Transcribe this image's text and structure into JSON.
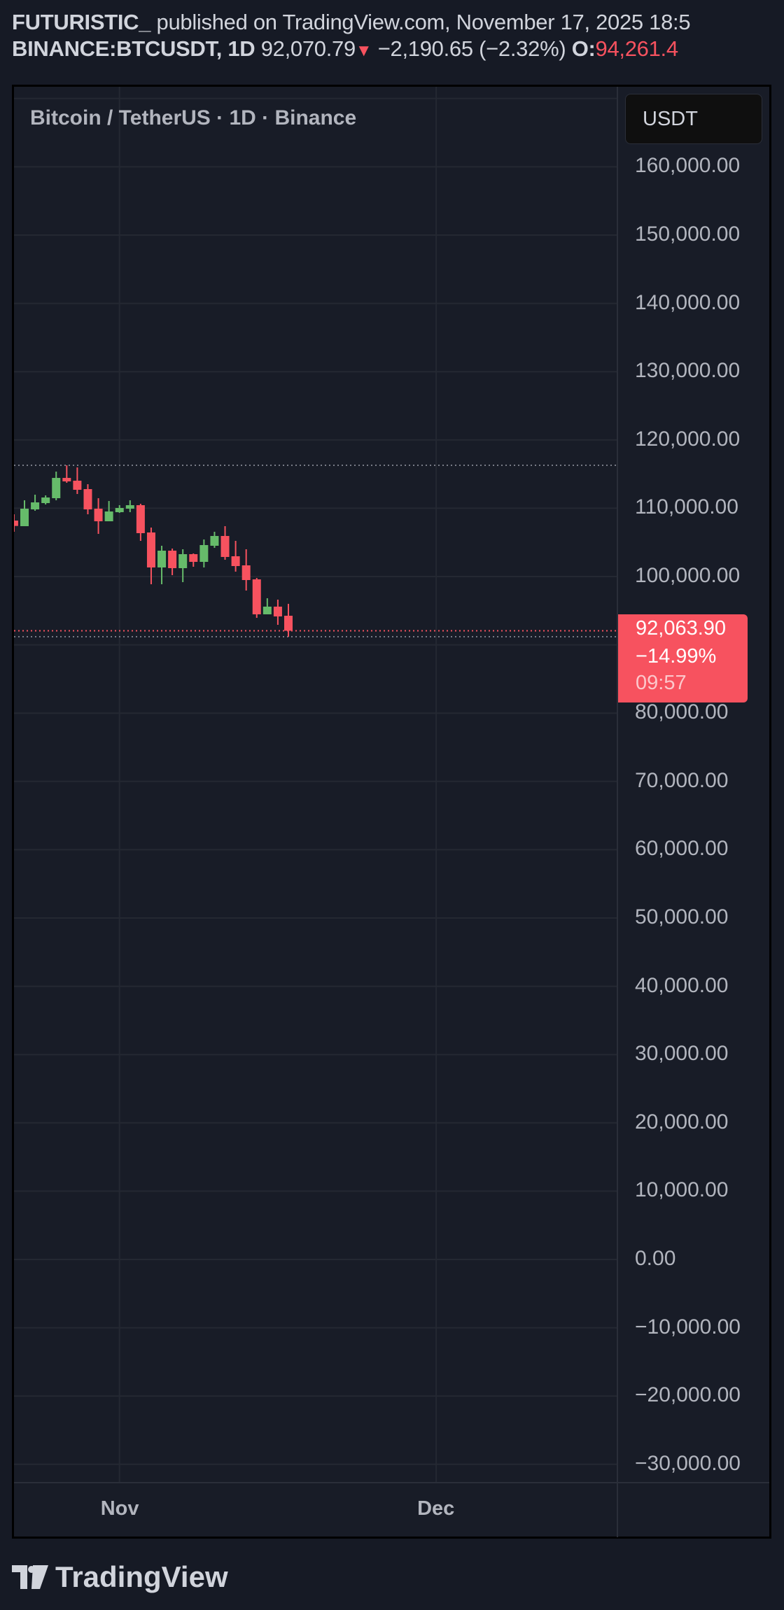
{
  "header": {
    "author": "FUTURISTIC_",
    "published": " published on TradingView.com, November 17, 2025 18:5",
    "symbol": "BINANCE:BTCUSDT, 1D",
    "last": "92,070.79",
    "change": "−2,190.65 (−2.32%)",
    "open_label": "O:",
    "open_value": "94,261.4"
  },
  "legend": "Bitcoin / TetherUS · 1D · Binance",
  "currency_button": "USDT",
  "last_price_label": {
    "price": "92,063.90",
    "change_pct": "−14.99%",
    "countdown": "09:57"
  },
  "logo": "TradingView",
  "colors": {
    "up": "#66bb6a",
    "down": "#f7525f",
    "background": "#181c27",
    "grid": "#242832"
  },
  "chart_data": {
    "type": "candlestick",
    "symbol": "BTCUSDT",
    "interval": "1D",
    "ylim": [
      -30000,
      160000
    ],
    "y_ticks": [
      "160,000.00",
      "150,000.00",
      "140,000.00",
      "130,000.00",
      "120,000.00",
      "110,000.00",
      "100,000.00",
      "80,000.00",
      "70,000.00",
      "60,000.00",
      "50,000.00",
      "40,000.00",
      "30,000.00",
      "20,000.00",
      "10,000.00",
      "0.00",
      "−10,000.00",
      "−20,000.00",
      "−30,000.00"
    ],
    "y_tick_values": [
      160000,
      150000,
      140000,
      130000,
      120000,
      110000,
      100000,
      80000,
      70000,
      60000,
      50000,
      40000,
      30000,
      20000,
      10000,
      0,
      -10000,
      -20000,
      -30000
    ],
    "x_ticks": [
      {
        "label": "Nov",
        "date": "2025-11-01"
      },
      {
        "label": "Dec",
        "date": "2025-12-01"
      }
    ],
    "grid": true,
    "reference_lines": {
      "high": 116290,
      "last": 92063.9,
      "low": 91189
    },
    "candles": [
      {
        "date": "2025-10-22",
        "o": 108196,
        "h": 109118,
        "l": 106557,
        "c": 107410
      },
      {
        "date": "2025-10-23",
        "o": 107376,
        "h": 111167,
        "l": 107376,
        "c": 109938
      },
      {
        "date": "2025-10-24",
        "o": 109835,
        "h": 111987,
        "l": 109630,
        "c": 110860
      },
      {
        "date": "2025-10-25",
        "o": 110757,
        "h": 111884,
        "l": 110552,
        "c": 111577
      },
      {
        "date": "2025-10-26",
        "o": 111474,
        "h": 115368,
        "l": 111167,
        "c": 114445
      },
      {
        "date": "2025-10-27",
        "o": 114445,
        "h": 116290,
        "l": 113728,
        "c": 113933
      },
      {
        "date": "2025-10-28",
        "o": 114036,
        "h": 115982,
        "l": 112089,
        "c": 112704
      },
      {
        "date": "2025-10-29",
        "o": 112806,
        "h": 113523,
        "l": 109118,
        "c": 109835
      },
      {
        "date": "2025-10-30",
        "o": 109938,
        "h": 111474,
        "l": 106249,
        "c": 108094
      },
      {
        "date": "2025-10-31",
        "o": 108094,
        "h": 111064,
        "l": 108094,
        "c": 109528
      },
      {
        "date": "2025-11-01",
        "o": 109425,
        "h": 110450,
        "l": 109323,
        "c": 110040
      },
      {
        "date": "2025-11-02",
        "o": 109938,
        "h": 111167,
        "l": 109425,
        "c": 110450
      },
      {
        "date": "2025-11-03",
        "o": 110450,
        "h": 110655,
        "l": 105225,
        "c": 106352
      },
      {
        "date": "2025-11-04",
        "o": 106454,
        "h": 107171,
        "l": 98873,
        "c": 101332
      },
      {
        "date": "2025-11-05",
        "o": 101332,
        "h": 104508,
        "l": 98873,
        "c": 103791
      },
      {
        "date": "2025-11-06",
        "o": 103791,
        "h": 104098,
        "l": 100205,
        "c": 101229
      },
      {
        "date": "2025-11-07",
        "o": 101229,
        "h": 103996,
        "l": 99180,
        "c": 103278
      },
      {
        "date": "2025-11-08",
        "o": 103278,
        "h": 103381,
        "l": 101434,
        "c": 102151
      },
      {
        "date": "2025-11-09",
        "o": 102151,
        "h": 105430,
        "l": 101332,
        "c": 104610
      },
      {
        "date": "2025-11-10",
        "o": 104508,
        "h": 106557,
        "l": 104200,
        "c": 105942
      },
      {
        "date": "2025-11-11",
        "o": 105942,
        "h": 107376,
        "l": 102459,
        "c": 102869
      },
      {
        "date": "2025-11-12",
        "o": 102971,
        "h": 105225,
        "l": 100717,
        "c": 101537
      },
      {
        "date": "2025-11-13",
        "o": 101639,
        "h": 103996,
        "l": 97951,
        "c": 99488
      },
      {
        "date": "2025-11-14",
        "o": 99590,
        "h": 99795,
        "l": 93955,
        "c": 94468
      },
      {
        "date": "2025-11-15",
        "o": 94468,
        "h": 96824,
        "l": 94468,
        "c": 95595
      },
      {
        "date": "2025-11-16",
        "o": 95595,
        "h": 96619,
        "l": 92931,
        "c": 94160
      },
      {
        "date": "2025-11-17",
        "o": 94261,
        "h": 96004,
        "l": 91189,
        "c": 92064
      }
    ]
  }
}
